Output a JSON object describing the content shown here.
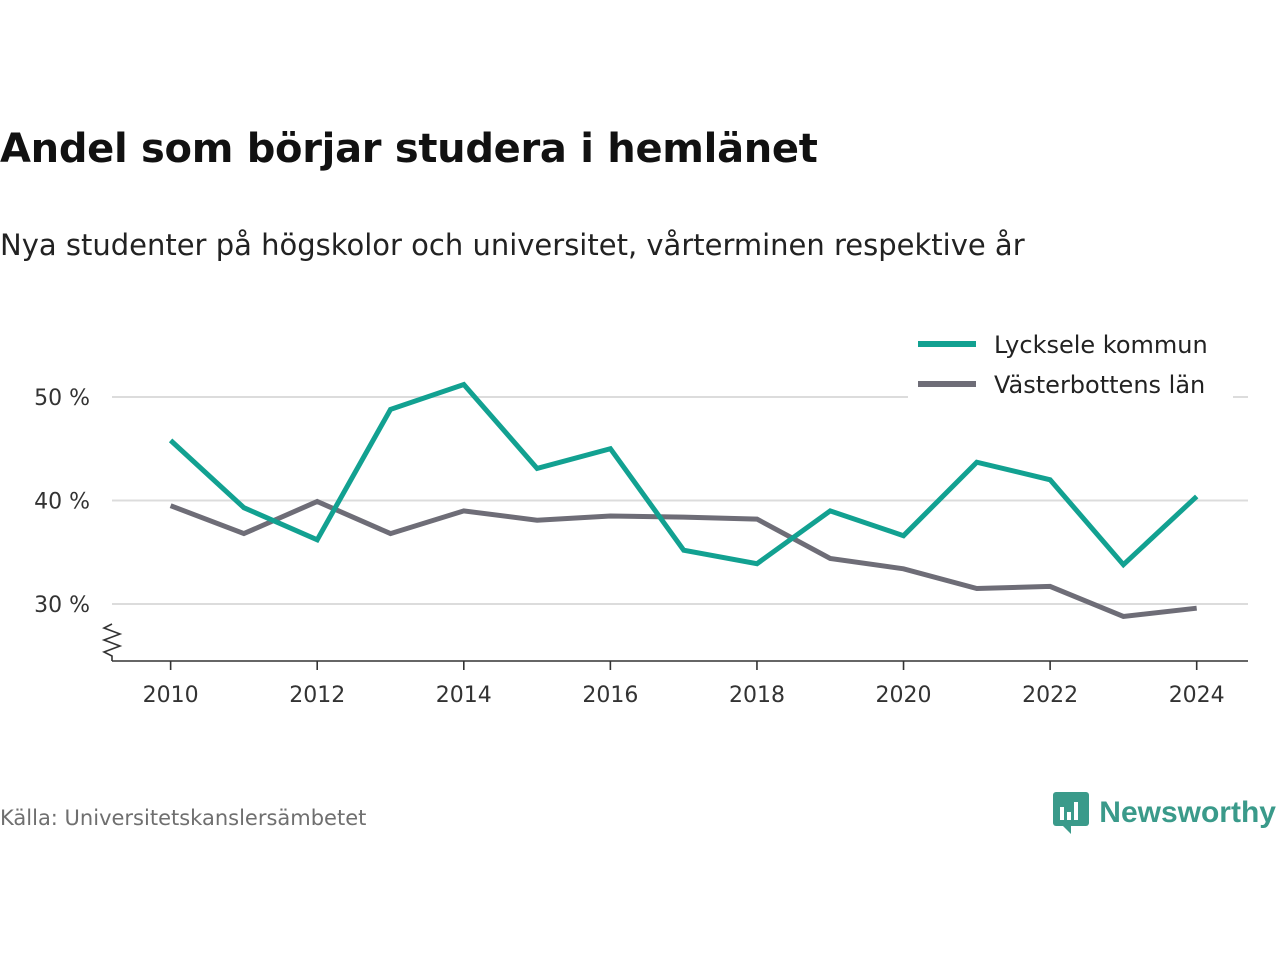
{
  "title": "Andel som börjar studera i hemlänet",
  "subtitle": "Nya studenter på högskolor och universitet, vårterminen respektive år",
  "source": "Källa: Universitetskanslersämbetet",
  "brand": {
    "name": "Newsworthy",
    "color": "#3a9a8a",
    "icon": "newsworthy-logo-icon"
  },
  "chart_data": {
    "type": "line",
    "x": [
      2010,
      2011,
      2012,
      2013,
      2014,
      2015,
      2016,
      2017,
      2018,
      2019,
      2020,
      2021,
      2022,
      2023,
      2024
    ],
    "series": [
      {
        "name": "Lycksele kommun",
        "color": "#12a191",
        "values": [
          45.8,
          39.3,
          36.2,
          48.8,
          51.2,
          43.1,
          45.0,
          35.2,
          33.9,
          39.0,
          36.6,
          43.7,
          42.0,
          33.8,
          40.4
        ]
      },
      {
        "name": "Västerbottens län",
        "color": "#6e6d77",
        "values": [
          39.5,
          36.8,
          39.9,
          36.8,
          39.0,
          38.1,
          38.5,
          38.4,
          38.2,
          34.4,
          33.4,
          31.5,
          31.7,
          28.8,
          29.6
        ]
      }
    ],
    "xticks": [
      2010,
      2012,
      2014,
      2016,
      2018,
      2020,
      2022,
      2024
    ],
    "yticks": [
      30,
      40,
      50
    ],
    "ytick_labels": [
      "30 %",
      "40 %",
      "50 %"
    ],
    "ylim": [
      24.5,
      55.5
    ],
    "xlim": [
      2009.2,
      2024.7
    ],
    "y_axis_break": true,
    "grid": "horizontal",
    "legend_position": "top-right",
    "xlabel": "",
    "ylabel": ""
  }
}
